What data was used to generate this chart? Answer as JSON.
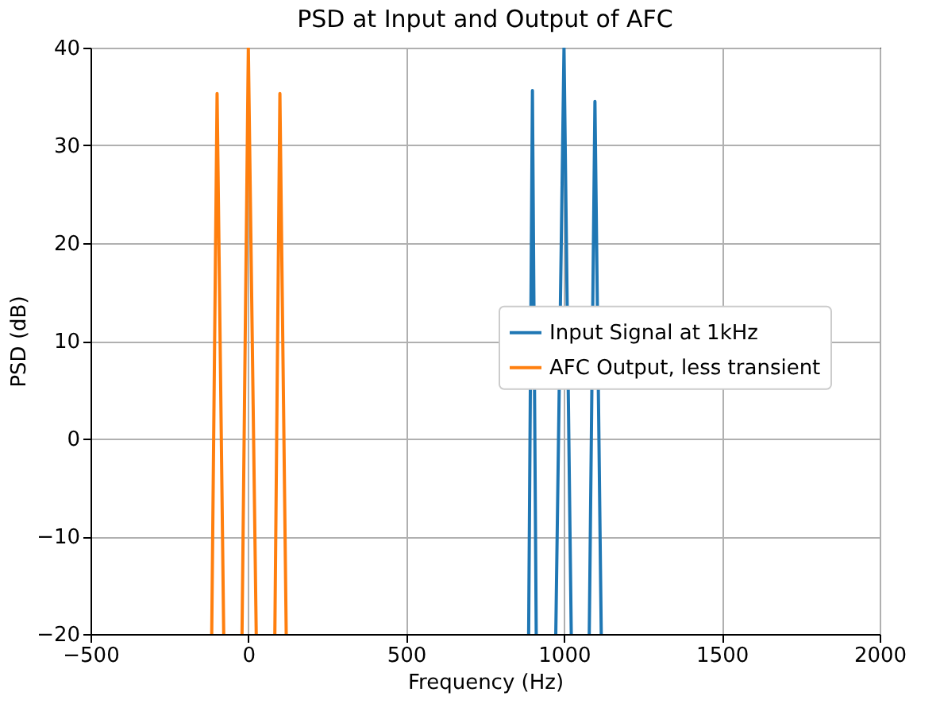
{
  "chart_data": {
    "type": "line",
    "title": "PSD at Input and Output of AFC",
    "xlabel": "Frequency (Hz)",
    "ylabel": "PSD (dB)",
    "xlim": [
      -500,
      2000
    ],
    "xticks": [
      -500,
      0,
      500,
      1000,
      1500,
      2000
    ],
    "ylim": [
      -20,
      40
    ],
    "yticks": [
      -20,
      -10,
      0,
      10,
      20,
      30,
      40
    ],
    "grid": true,
    "legend": "right",
    "series": [
      {
        "name": "Input Signal at 1kHz",
        "color": "#1f77b4",
        "x": [
          888,
          900,
          912,
          940,
          974,
          1000,
          1023,
          1050,
          1080,
          1098,
          1118
        ],
        "values": [
          -20,
          35.6,
          -20,
          null,
          -20,
          40,
          -20,
          null,
          -20,
          34.5,
          -20
        ]
      },
      {
        "name": "AFC Output, less transient",
        "color": "#ff7f0e",
        "x": [
          -116,
          -99,
          -78,
          -50,
          -20,
          0,
          25,
          60,
          84,
          100,
          120
        ],
        "values": [
          -20,
          35.3,
          -20,
          null,
          -20,
          40,
          -20,
          null,
          -20,
          35.3,
          -20
        ]
      }
    ]
  }
}
